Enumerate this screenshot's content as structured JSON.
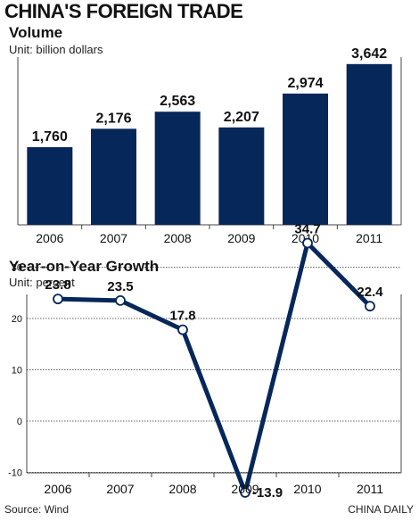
{
  "title": "CHINA'S FOREIGN TRADE",
  "source": "Source: Wind",
  "credit": "CHINA DAILY",
  "colors": {
    "navy": "#06275a",
    "bg": "#ffffff"
  },
  "chart_data": [
    {
      "type": "bar",
      "title": "Volume",
      "subtitle": "Unit: billion dollars",
      "categories": [
        "2006",
        "2007",
        "2008",
        "2009",
        "2010",
        "2011"
      ],
      "values": [
        1760,
        2176,
        2563,
        2207,
        2974,
        3642
      ],
      "value_labels": [
        "1,760",
        "2,176",
        "2,563",
        "2,207",
        "2,974",
        "3,642"
      ],
      "ylim": [
        0,
        3800
      ],
      "grid": false
    },
    {
      "type": "line",
      "title": "Year-on-Year Growth",
      "subtitle": "Unit: percent",
      "categories": [
        "2006",
        "2007",
        "2008",
        "2009",
        "2010",
        "2011"
      ],
      "values": [
        23.8,
        23.5,
        17.8,
        -13.9,
        34.7,
        22.4
      ],
      "value_labels": [
        "23.8",
        "23.5",
        "17.8",
        "-13.9",
        "34.7",
        "22.4"
      ],
      "yticks": [
        30,
        20,
        10,
        0,
        -10
      ],
      "ytick_labels": [
        "30",
        "20",
        "10",
        "0",
        "-10"
      ],
      "ylim": [
        -15,
        36
      ],
      "grid": true
    }
  ]
}
